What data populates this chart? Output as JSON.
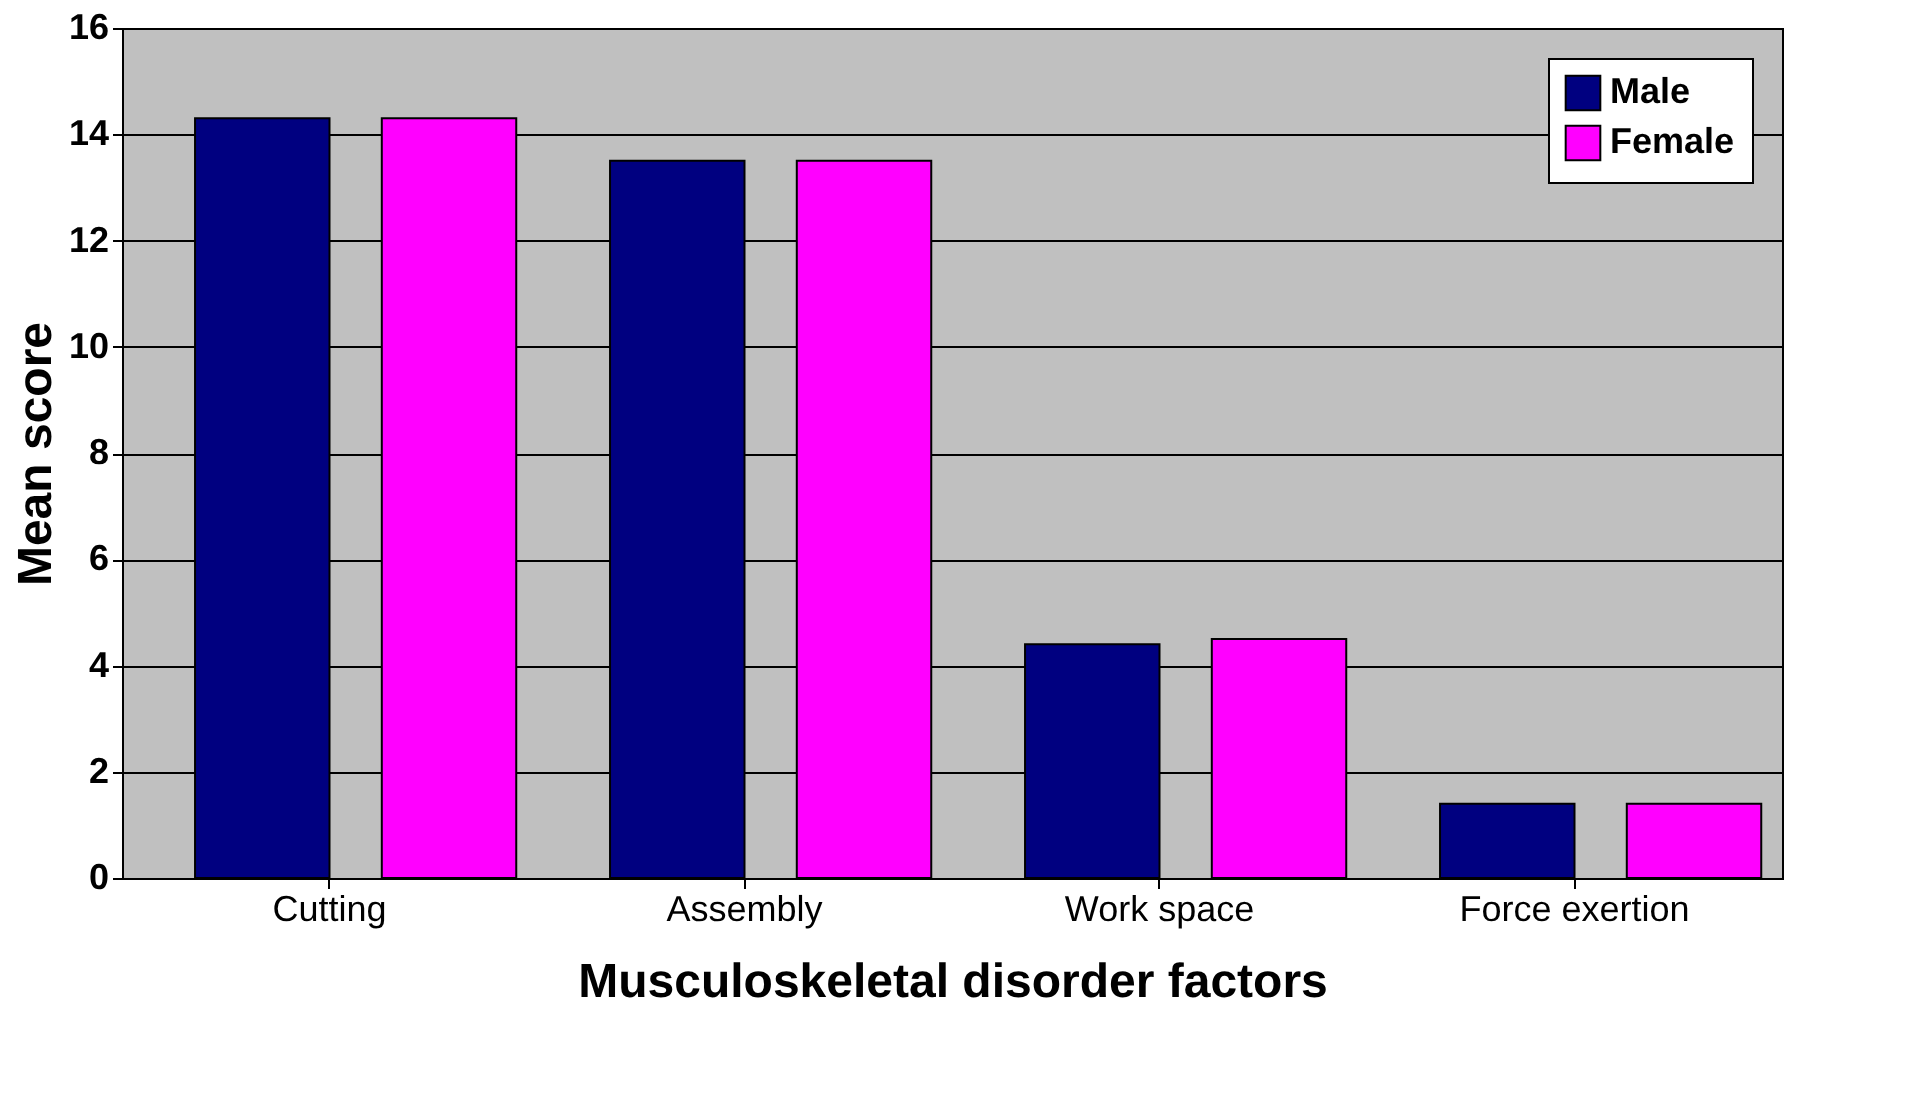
{
  "chart_data": {
    "type": "bar",
    "xlabel": "Musculoskeletal disorder factors",
    "ylabel": "Mean score",
    "categories": [
      "Cutting",
      "Assembly",
      "Work space",
      "Force exertion"
    ],
    "series": [
      {
        "name": "Male",
        "color": "#000080",
        "values": [
          14.3,
          13.5,
          4.4,
          1.4
        ]
      },
      {
        "name": "Female",
        "color": "#ff00ff",
        "values": [
          14.3,
          13.5,
          4.5,
          1.4
        ]
      }
    ],
    "ylim": [
      0,
      16
    ],
    "yticks": [
      0,
      2,
      4,
      6,
      8,
      10,
      12,
      14,
      16
    ],
    "grid": "y",
    "legend": "top right"
  }
}
